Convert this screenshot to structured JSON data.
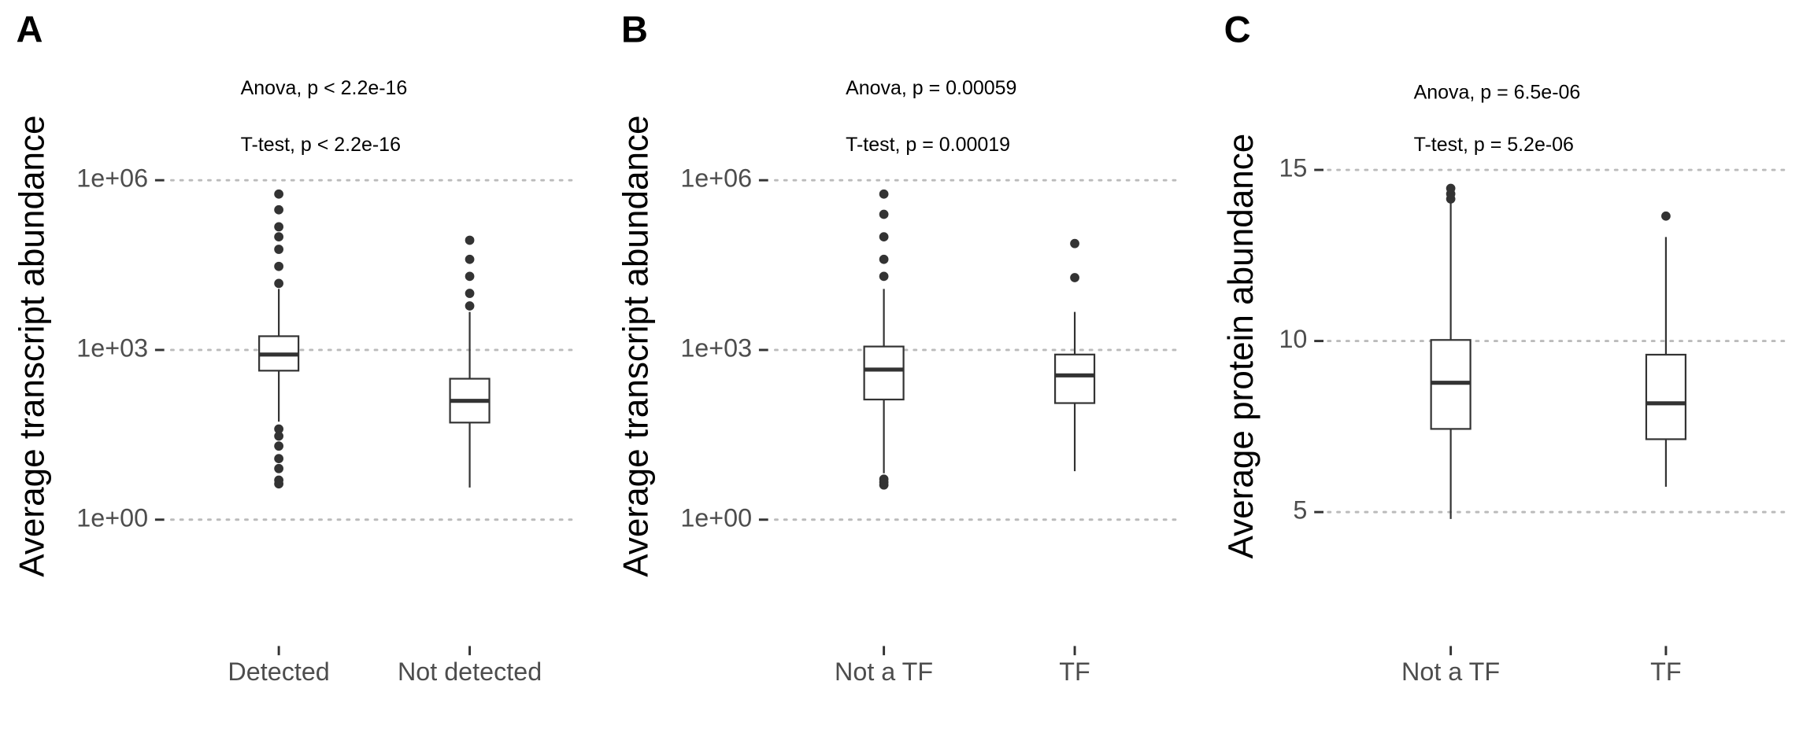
{
  "chart_data": [
    {
      "type": "box",
      "panel": "A",
      "ylabel": "Average transcript abundance",
      "annotations": [
        "Anova, p < 2.2e-16",
        "T-test, p < 2.2e-16"
      ],
      "log_y": true,
      "grid": true,
      "color": "#333333",
      "ylim": [
        0.013,
        105000000
      ],
      "yticks": [
        {
          "value": 1,
          "label": "1e+00"
        },
        {
          "value": 1000,
          "label": "1e+03"
        },
        {
          "value": 1000000,
          "label": "1e+06"
        }
      ],
      "categories": [
        "Detected",
        "Not detected"
      ],
      "boxes": [
        {
          "whisker_low": 54,
          "q1": 430,
          "median": 830,
          "q3": 1750,
          "whisker_high": 12000,
          "outliers": [
            4.3,
            5,
            8,
            12,
            20,
            30,
            40,
            15000,
            30000,
            60000,
            100000,
            150000,
            300000,
            570000
          ]
        },
        {
          "whisker_low": 3.7,
          "q1": 52,
          "median": 126,
          "q3": 310,
          "whisker_high": 4700,
          "outliers": [
            6000,
            10000,
            20000,
            40000,
            87000
          ]
        }
      ]
    },
    {
      "type": "box",
      "panel": "B",
      "ylabel": "Average transcript abundance",
      "annotations": [
        "Anova, p = 0.00059",
        "T-test, p = 0.00019"
      ],
      "log_y": true,
      "grid": true,
      "color": "#333333",
      "ylim": [
        0.013,
        105000000
      ],
      "yticks": [
        {
          "value": 1,
          "label": "1e+00"
        },
        {
          "value": 1000,
          "label": "1e+03"
        },
        {
          "value": 1000000,
          "label": "1e+06"
        }
      ],
      "categories": [
        "Not a TF",
        "TF"
      ],
      "boxes": [
        {
          "whisker_low": 6.6,
          "q1": 133,
          "median": 450,
          "q3": 1150,
          "whisker_high": 12000,
          "outliers": [
            4.1,
            4.6,
            5.2,
            20000,
            40000,
            100000,
            250000,
            570000
          ]
        },
        {
          "whisker_low": 7.2,
          "q1": 115,
          "median": 355,
          "q3": 830,
          "whisker_high": 4700,
          "outliers": [
            19000,
            76000
          ]
        }
      ]
    },
    {
      "type": "box",
      "panel": "C",
      "ylabel": "Average protein abundance",
      "annotations": [
        "Anova, p = 6.5e-06",
        "T-test, p = 5.2e-06"
      ],
      "log_y": false,
      "grid": true,
      "color": "#333333",
      "ylim": [
        1.66,
        18.04
      ],
      "yticks": [
        5,
        10,
        15
      ],
      "categories": [
        "Not a TF",
        "TF"
      ],
      "boxes": [
        {
          "whisker_low": 4.8,
          "q1": 7.43,
          "median": 8.78,
          "q3": 10.03,
          "whisker_high": 14.05,
          "outliers": [
            14.15,
            14.3,
            14.46
          ]
        },
        {
          "whisker_low": 5.74,
          "q1": 7.13,
          "median": 8.18,
          "q3": 9.6,
          "whisker_high": 13.04,
          "outliers": [
            13.65
          ]
        }
      ]
    }
  ]
}
